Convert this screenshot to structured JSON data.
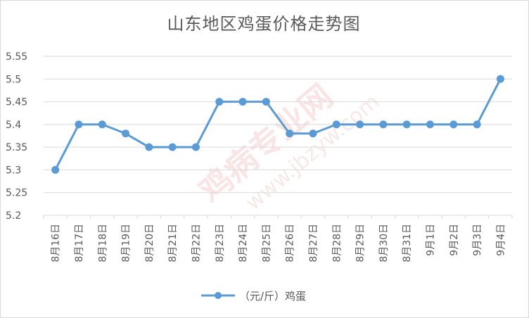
{
  "chart_data": {
    "type": "line",
    "title": "山东地区鸡蛋价格走势图",
    "categories": [
      "8月16日",
      "8月17日",
      "8月18日",
      "8月19日",
      "8月20日",
      "8月21日",
      "8月22日",
      "8月23日",
      "8月24日",
      "8月25日",
      "8月26日",
      "8月27日",
      "8月28日",
      "8月29日",
      "8月30日",
      "8月31日",
      "9月1日",
      "9月2日",
      "9月3日",
      "9月4日"
    ],
    "series": [
      {
        "name": "（元/斤）鸡蛋",
        "values": [
          5.3,
          5.4,
          5.4,
          5.38,
          5.35,
          5.35,
          5.35,
          5.45,
          5.45,
          5.45,
          5.38,
          5.38,
          5.4,
          5.4,
          5.4,
          5.4,
          5.4,
          5.4,
          5.4,
          5.5
        ]
      }
    ],
    "yticks": [
      "5.2",
      "5.25",
      "5.3",
      "5.35",
      "5.4",
      "5.45",
      "5.5",
      "5.55"
    ],
    "ylim": [
      5.2,
      5.55
    ],
    "grid": true,
    "legend_position": "bottom",
    "line_color": "#5b9bd5"
  },
  "watermark": {
    "main": "鸡病专业网",
    "url": "www.jbzyw.com"
  }
}
